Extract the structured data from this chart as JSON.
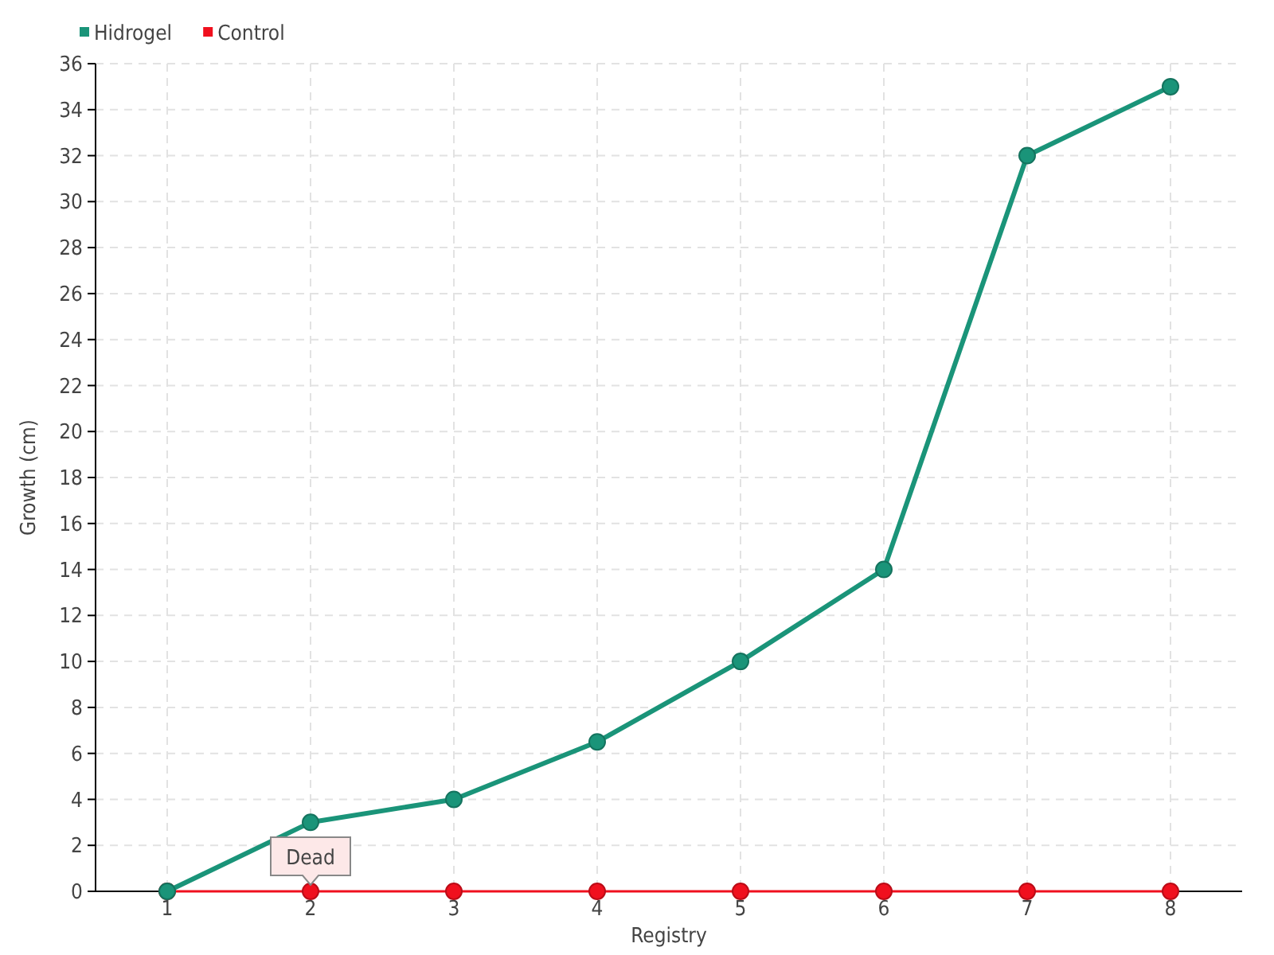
{
  "chart_data": {
    "type": "line",
    "xlabel": "Registry",
    "ylabel": "Growth (cm)",
    "categories": [
      "1",
      "2",
      "3",
      "4",
      "5",
      "6",
      "7",
      "8"
    ],
    "series": [
      {
        "name": "Hidrogel",
        "color": "#1a9479",
        "values": [
          0,
          3,
          4,
          6.5,
          10,
          14,
          32,
          35
        ]
      },
      {
        "name": "Control",
        "color": "#f0101e",
        "values": [
          0,
          0,
          0,
          0,
          0,
          0,
          0,
          0
        ]
      }
    ],
    "ylim": [
      0,
      36
    ],
    "yticks": [
      0,
      2,
      4,
      6,
      8,
      10,
      12,
      14,
      16,
      18,
      20,
      22,
      24,
      26,
      28,
      30,
      32,
      34,
      36
    ],
    "grid": true,
    "legend": "top left",
    "marker": "circle",
    "line_style": "solid",
    "annotations": [
      {
        "text": "Dead",
        "x": "2",
        "y": 0
      }
    ]
  }
}
